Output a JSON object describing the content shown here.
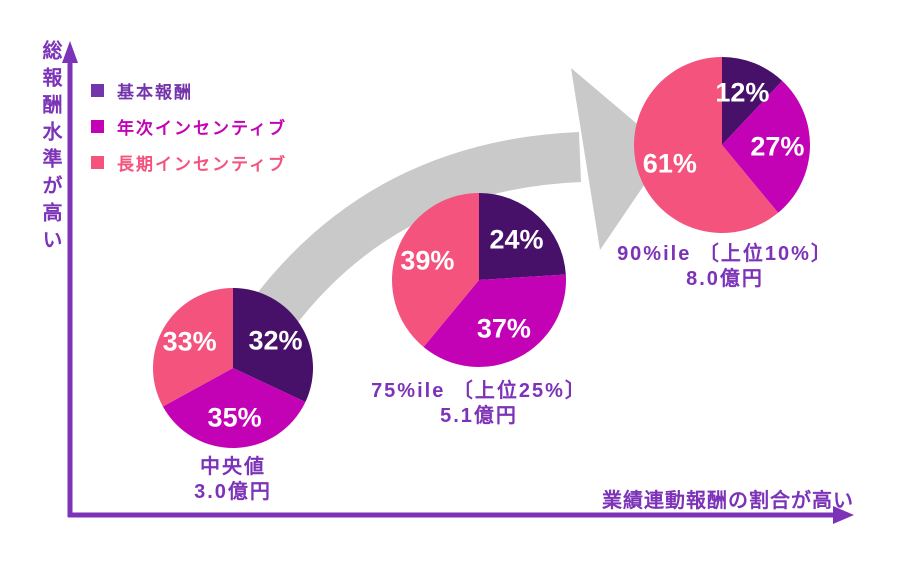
{
  "figure": {
    "background": "#FFFFFF",
    "growth_arrow_color": "#C9C9C9"
  },
  "axes": {
    "color": "#7C33B8",
    "y_label": "総報酬水準が高い",
    "x_label": "業績連動報酬の割合が高い"
  },
  "legend": {
    "items": [
      {
        "label": "基本報酬",
        "color": "#7434AC"
      },
      {
        "label": "年次インセンティブ",
        "color": "#C302B5"
      },
      {
        "label": "長期インセンティブ",
        "color": "#F4537E"
      }
    ]
  },
  "chart_data": {
    "type": "pie",
    "unit": "%",
    "series": [
      "基本報酬",
      "年次インセンティブ",
      "長期インセンティブ"
    ],
    "series_colors": [
      "#471069",
      "#C302B5",
      "#F4537E"
    ],
    "slice_label_color": "#FFFFFF",
    "pies": [
      {
        "name": "中央値",
        "amount": "3.0億円",
        "values": [
          32,
          35,
          33
        ]
      },
      {
        "name": "75%ile 〔上位25%〕",
        "amount": "5.1億円",
        "values": [
          24,
          37,
          39
        ]
      },
      {
        "name": "90%ile 〔上位10%〕",
        "amount": "8.0億円",
        "values": [
          12,
          27,
          61
        ]
      }
    ],
    "x_axis_label": "業績連動報酬の割合が高い",
    "y_axis_label": "総報酬水準が高い",
    "legend_position": "top-left",
    "annotation": "gray block arrow rising from median pie to 90th percentile pie"
  }
}
